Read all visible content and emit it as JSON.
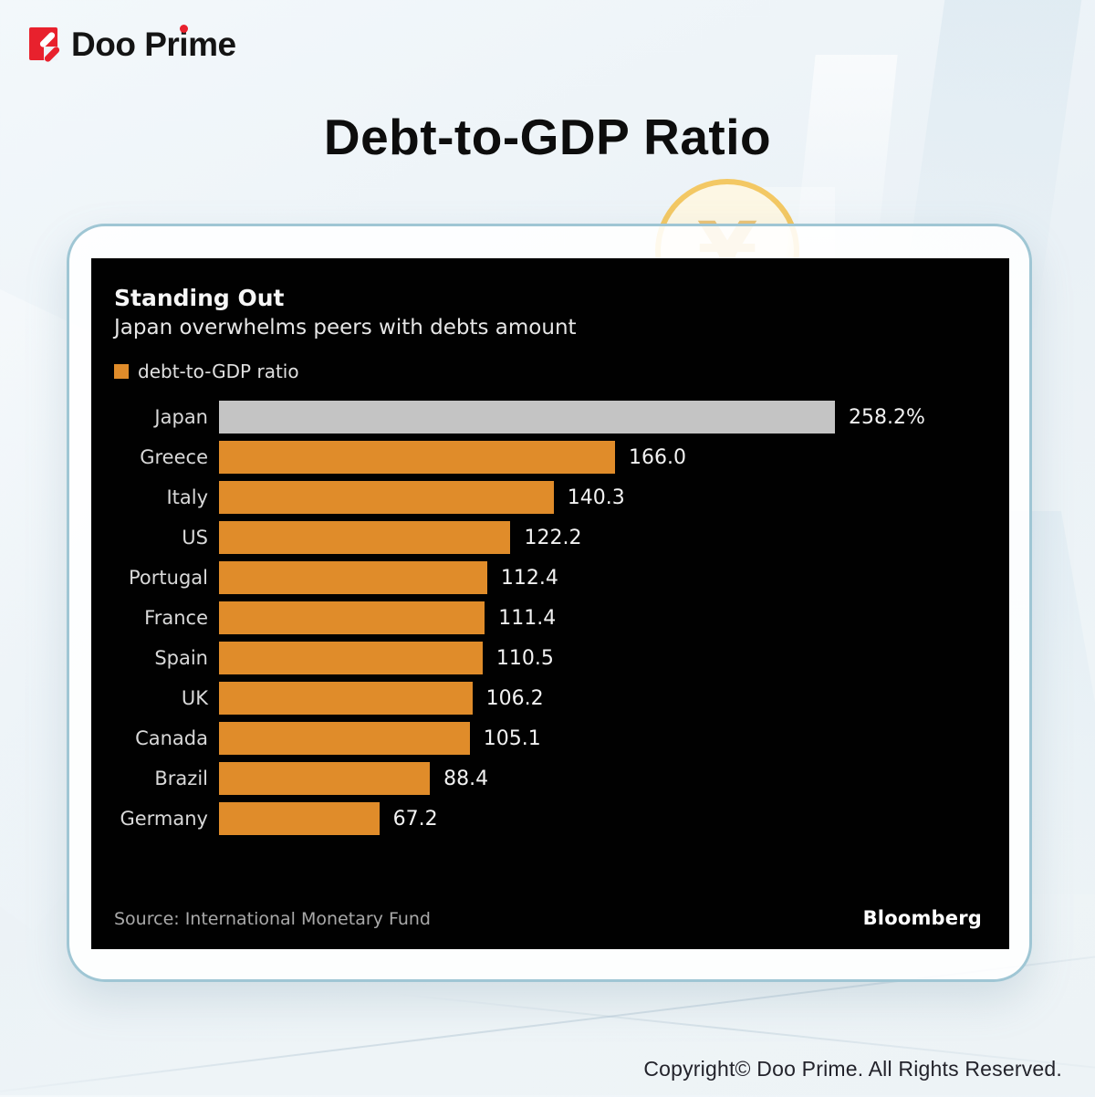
{
  "brand": {
    "name_part1": "Doo Pr",
    "name_i": "i",
    "name_part2": "me",
    "full_name": "Doo Prime"
  },
  "page_title": "Debt-to-GDP Ratio",
  "coin": {
    "symbol": "¥"
  },
  "chart": {
    "title": "Standing Out",
    "subtitle": "Japan overwhelms peers with debts amount",
    "legend_label": "debt-to-GDP ratio",
    "source": "Source: International Monetary Fund",
    "attribution": "Bloomberg"
  },
  "chart_data": {
    "type": "bar",
    "orientation": "horizontal",
    "title": "Standing Out",
    "subtitle": "Japan overwhelms peers with debts amount",
    "legend": [
      "debt-to-GDP ratio"
    ],
    "categories": [
      "Japan",
      "Greece",
      "Italy",
      "US",
      "Portugal",
      "France",
      "Spain",
      "UK",
      "Canada",
      "Brazil",
      "Germany"
    ],
    "values": [
      258.2,
      166.0,
      140.3,
      122.2,
      112.4,
      111.4,
      110.5,
      106.2,
      105.1,
      88.4,
      67.2
    ],
    "value_labels": [
      "258.2%",
      "166.0",
      "140.3",
      "122.2",
      "112.4",
      "111.4",
      "110.5",
      "106.2",
      "105.1",
      "88.4",
      "67.2"
    ],
    "xlim": [
      0,
      280
    ],
    "grid": false,
    "legend_position": "top-left",
    "bar_color": "#E08C2A",
    "highlight_bar_color": "#C4C4C4",
    "highlight_index": 0,
    "source": "Source: International Monetary Fund",
    "attribution": "Bloomberg"
  },
  "footer": {
    "copyright": "Copyright© Doo Prime. All Rights Reserved."
  },
  "colors": {
    "accent_red": "#E8212D",
    "bar_orange": "#E08C2A",
    "bar_gray": "#C4C4C4",
    "panel_bg": "#010101",
    "card_border": "#9FC6D4"
  }
}
